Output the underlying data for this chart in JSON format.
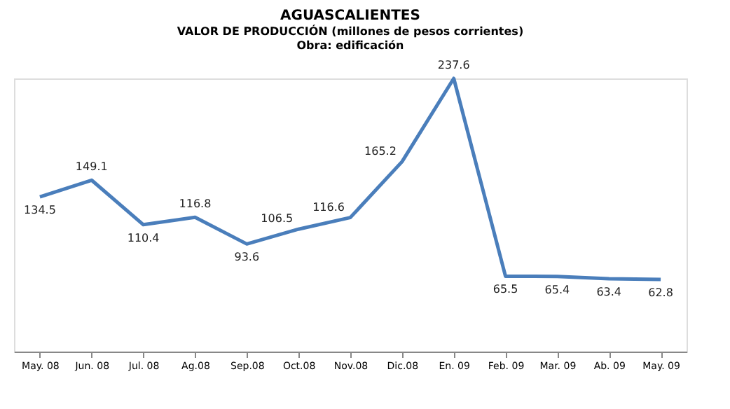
{
  "chart_data": {
    "type": "line",
    "title": "AGUASCALIENTES",
    "subtitle": [
      "VALOR DE PRODUCCIÓN (millones de pesos corrientes)",
      "Obra: edificación"
    ],
    "categories": [
      "May. 08",
      "Jun. 08",
      "Jul. 08",
      "Ag.08",
      "Sep.08",
      "Oct.08",
      "Nov.08",
      "Dic.08",
      "En. 09",
      "Feb. 09",
      "Mar. 09",
      "Ab. 09",
      "May. 09"
    ],
    "series": [
      {
        "color": "#4a7ebb",
        "values": [
          134.5,
          149.1,
          110.4,
          116.8,
          93.6,
          106.5,
          116.6,
          165.2,
          237.6,
          65.5,
          65.4,
          63.4,
          62.8
        ]
      }
    ],
    "data_labels": true,
    "grid": false,
    "marker": "none",
    "line_style": "solid"
  }
}
